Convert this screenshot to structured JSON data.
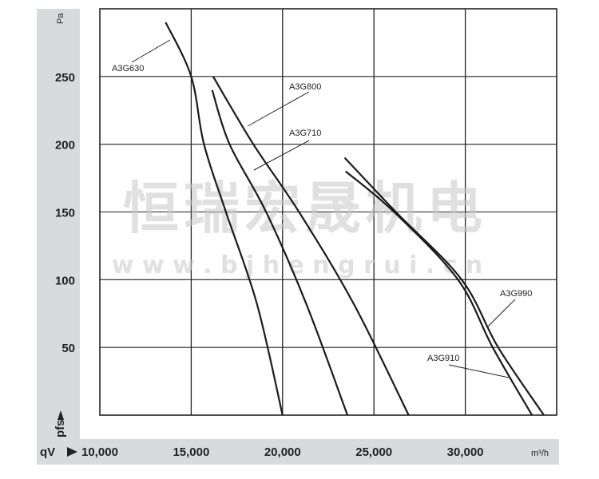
{
  "chart_data": {
    "type": "line",
    "title": "",
    "xlabel": "qV",
    "xunit": "m³/h",
    "ylabel": "pfs",
    "yunit": "Pa",
    "xlim": [
      10000,
      35000
    ],
    "ylim": [
      0,
      300
    ],
    "x_ticks": [
      10000,
      15000,
      20000,
      25000,
      30000
    ],
    "x_tick_labels": [
      "10,000",
      "15,000",
      "20,000",
      "25,000",
      "30,000"
    ],
    "y_ticks": [
      50,
      100,
      150,
      200,
      250
    ],
    "y_tick_labels": [
      "50",
      "100",
      "150",
      "200",
      "250"
    ],
    "grid": true,
    "legend": "inline labels with leader lines",
    "series": [
      {
        "name": "A3G630",
        "points": [
          [
            13600,
            290
          ],
          [
            15000,
            250
          ],
          [
            15700,
            200
          ],
          [
            16900,
            150
          ],
          [
            18600,
            82
          ],
          [
            20000,
            0
          ]
        ]
      },
      {
        "name": "A3G800",
        "points": [
          [
            16200,
            250
          ],
          [
            18400,
            200
          ],
          [
            20900,
            150
          ],
          [
            23900,
            82
          ],
          [
            26900,
            0
          ]
        ]
      },
      {
        "name": "A3G710",
        "points": [
          [
            16150,
            240
          ],
          [
            17100,
            200
          ],
          [
            19100,
            150
          ],
          [
            21300,
            82
          ],
          [
            23550,
            0
          ]
        ]
      },
      {
        "name": "A3G990",
        "points": [
          [
            23400,
            190
          ],
          [
            26200,
            150
          ],
          [
            29800,
            100
          ],
          [
            31800,
            50
          ],
          [
            34300,
            0
          ]
        ]
      },
      {
        "name": "A3G910",
        "points": [
          [
            23450,
            180
          ],
          [
            26100,
            150
          ],
          [
            29600,
            100
          ],
          [
            31500,
            50
          ],
          [
            33650,
            0
          ]
        ]
      }
    ],
    "colors": {
      "line": "#1a1a1a",
      "axis_band": "#d9dadc",
      "grid": "#222222"
    }
  },
  "watermark": {
    "text": "恒瑞宏晟机电",
    "url": "w w w . b j h e n g r u i . c n"
  }
}
